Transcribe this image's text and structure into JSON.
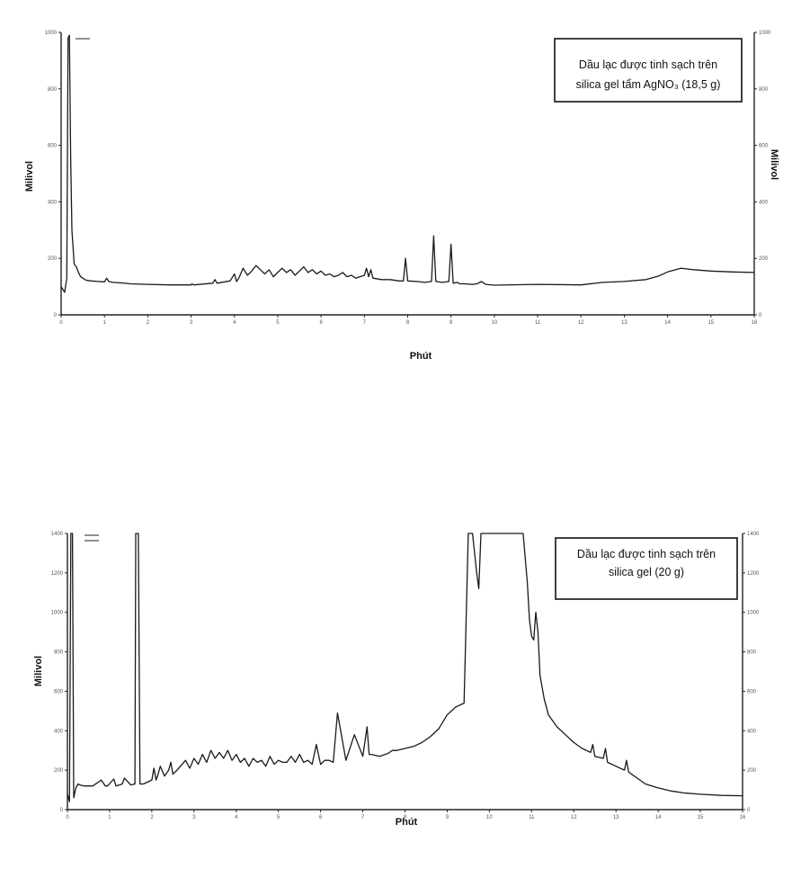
{
  "chart_data": [
    {
      "type": "line",
      "title": "",
      "annotation_lines": [
        "Dầu lạc được tinh sạch trên",
        "silica gel tẩm AgNO₃ (18,5 g)"
      ],
      "xlabel": "Phút",
      "ylabel": "Milivol",
      "ylabel_right": "Milivol",
      "xlim": [
        0,
        16
      ],
      "ylim": [
        0,
        1000
      ],
      "x_ticks": [
        "0",
        "1",
        "2",
        "3",
        "4",
        "5",
        "6",
        "7",
        "8",
        "9",
        "10",
        "11",
        "12",
        "13",
        "14",
        "15",
        "16"
      ],
      "y_ticks_left": [
        "0",
        "200",
        "400",
        "600",
        "800",
        "1000"
      ],
      "y_ticks_right": [
        "0",
        "200",
        "400",
        "600",
        "800",
        "1000"
      ],
      "legend_entries": [
        "",
        "",
        ""
      ],
      "series": [
        {
          "x": [
            0,
            0.08,
            0.13,
            0.16,
            0.19,
            0.22,
            0.25,
            0.3,
            0.35,
            0.4,
            0.45,
            0.5,
            0.55,
            0.6,
            0.7,
            0.85,
            1.0,
            1.05,
            1.1,
            1.2,
            1.4,
            1.6,
            2.0,
            2.5,
            3.0,
            3.02,
            3.06,
            3.5,
            3.55,
            3.6,
            3.9,
            4.0,
            4.05,
            4.1,
            4.2,
            4.3,
            4.4,
            4.5,
            4.6,
            4.7,
            4.8,
            4.9,
            5.0,
            5.1,
            5.2,
            5.3,
            5.4,
            5.5,
            5.6,
            5.7,
            5.8,
            5.9,
            6.0,
            6.1,
            6.2,
            6.3,
            6.4,
            6.5,
            6.6,
            6.7,
            6.8,
            6.9,
            7.0,
            7.05,
            7.1,
            7.15,
            7.2,
            7.4,
            7.6,
            7.8,
            7.9,
            7.95,
            8.0,
            8.2,
            8.4,
            8.55,
            8.6,
            8.65,
            8.8,
            8.95,
            9.0,
            9.05,
            9.15,
            9.2,
            9.3,
            9.5,
            9.6,
            9.7,
            9.8,
            10.0,
            11.0,
            12.0,
            12.5,
            13.0,
            13.5,
            13.8,
            14.0,
            14.3,
            14.6,
            15.0,
            15.5,
            16.0
          ],
          "y": [
            100,
            80,
            130,
            980,
            990,
            560,
            300,
            180,
            170,
            150,
            135,
            130,
            125,
            122,
            120,
            118,
            117,
            130,
            118,
            115,
            113,
            110,
            108,
            106,
            106,
            110,
            106,
            112,
            125,
            112,
            120,
            145,
            118,
            130,
            165,
            140,
            155,
            175,
            160,
            145,
            160,
            135,
            150,
            165,
            150,
            160,
            140,
            155,
            170,
            150,
            160,
            145,
            155,
            140,
            145,
            135,
            140,
            150,
            135,
            140,
            130,
            135,
            140,
            165,
            135,
            160,
            130,
            125,
            125,
            120,
            120,
            200,
            120,
            118,
            115,
            118,
            280,
            118,
            115,
            118,
            250,
            112,
            115,
            110,
            110,
            108,
            110,
            118,
            108,
            105,
            108,
            106,
            115,
            118,
            125,
            138,
            152,
            165,
            160,
            155,
            152,
            150
          ]
        }
      ]
    },
    {
      "type": "line",
      "title": "",
      "annotation_lines": [
        "Dầu lạc được tinh sạch trên",
        "silica gel (20 g)"
      ],
      "xlabel": "Phút",
      "ylabel": "Milivol",
      "ylabel_right": "",
      "xlim": [
        0,
        16
      ],
      "ylim": [
        0,
        1400
      ],
      "x_ticks": [
        "0",
        "1",
        "2",
        "3",
        "4",
        "5",
        "6",
        "7",
        "8",
        "9",
        "10",
        "11",
        "12",
        "13",
        "14",
        "15",
        "16"
      ],
      "y_ticks_left": [
        "0",
        "200",
        "400",
        "600",
        "800",
        "1000",
        "1200",
        "1400"
      ],
      "y_ticks_right": [
        "0",
        "200",
        "400",
        "600",
        "800",
        "1000",
        "1200",
        "1400"
      ],
      "legend_entries": [
        "",
        "",
        "",
        ""
      ],
      "series": [
        {
          "x": [
            0,
            0.05,
            0.08,
            0.12,
            0.15,
            0.2,
            0.25,
            0.3,
            0.4,
            0.6,
            0.8,
            0.9,
            0.95,
            1.1,
            1.15,
            1.3,
            1.35,
            1.5,
            1.6,
            1.62,
            1.68,
            1.72,
            1.8,
            2.0,
            2.05,
            2.1,
            2.15,
            2.2,
            2.3,
            2.4,
            2.45,
            2.5,
            2.6,
            2.8,
            2.9,
            3.0,
            3.1,
            3.2,
            3.3,
            3.4,
            3.5,
            3.6,
            3.7,
            3.8,
            3.9,
            4.0,
            4.1,
            4.2,
            4.3,
            4.4,
            4.5,
            4.6,
            4.7,
            4.8,
            4.9,
            5.0,
            5.1,
            5.2,
            5.3,
            5.4,
            5.5,
            5.6,
            5.7,
            5.8,
            5.9,
            6.0,
            6.1,
            6.2,
            6.3,
            6.4,
            6.6,
            6.8,
            7.0,
            7.1,
            7.15,
            7.2,
            7.4,
            7.6,
            7.7,
            7.8,
            8.0,
            8.2,
            8.4,
            8.6,
            8.8,
            9.0,
            9.2,
            9.4,
            9.5,
            9.6,
            9.7,
            9.75,
            9.8,
            9.85,
            9.9,
            10.0,
            10.3,
            10.6,
            10.8,
            10.9,
            10.95,
            11.0,
            11.05,
            11.1,
            11.15,
            11.2,
            11.3,
            11.4,
            11.6,
            11.8,
            12.0,
            12.2,
            12.4,
            12.45,
            12.5,
            12.7,
            12.75,
            12.8,
            13.0,
            13.2,
            13.25,
            13.3,
            13.5,
            13.7,
            14.0,
            14.3,
            14.6,
            15.0,
            15.5,
            16.0
          ],
          "y": [
            80,
            40,
            1400,
            1400,
            60,
            110,
            130,
            125,
            120,
            120,
            150,
            120,
            120,
            155,
            120,
            130,
            160,
            125,
            130,
            1400,
            1400,
            130,
            130,
            150,
            210,
            150,
            180,
            220,
            170,
            200,
            240,
            180,
            200,
            250,
            210,
            260,
            230,
            280,
            240,
            300,
            260,
            290,
            260,
            300,
            250,
            280,
            240,
            260,
            220,
            260,
            240,
            250,
            220,
            270,
            230,
            250,
            240,
            240,
            270,
            240,
            280,
            240,
            250,
            230,
            330,
            230,
            250,
            250,
            240,
            490,
            250,
            380,
            270,
            420,
            280,
            280,
            270,
            285,
            300,
            300,
            310,
            320,
            340,
            370,
            410,
            480,
            520,
            540,
            1400,
            1400,
            1200,
            1120,
            1400,
            1400,
            1400,
            1400,
            1400,
            1400,
            1400,
            1150,
            960,
            880,
            860,
            1000,
            900,
            680,
            560,
            480,
            420,
            380,
            340,
            310,
            290,
            330,
            270,
            260,
            310,
            240,
            220,
            200,
            250,
            190,
            160,
            130,
            110,
            95,
            85,
            78,
            72,
            70
          ]
        }
      ]
    }
  ]
}
